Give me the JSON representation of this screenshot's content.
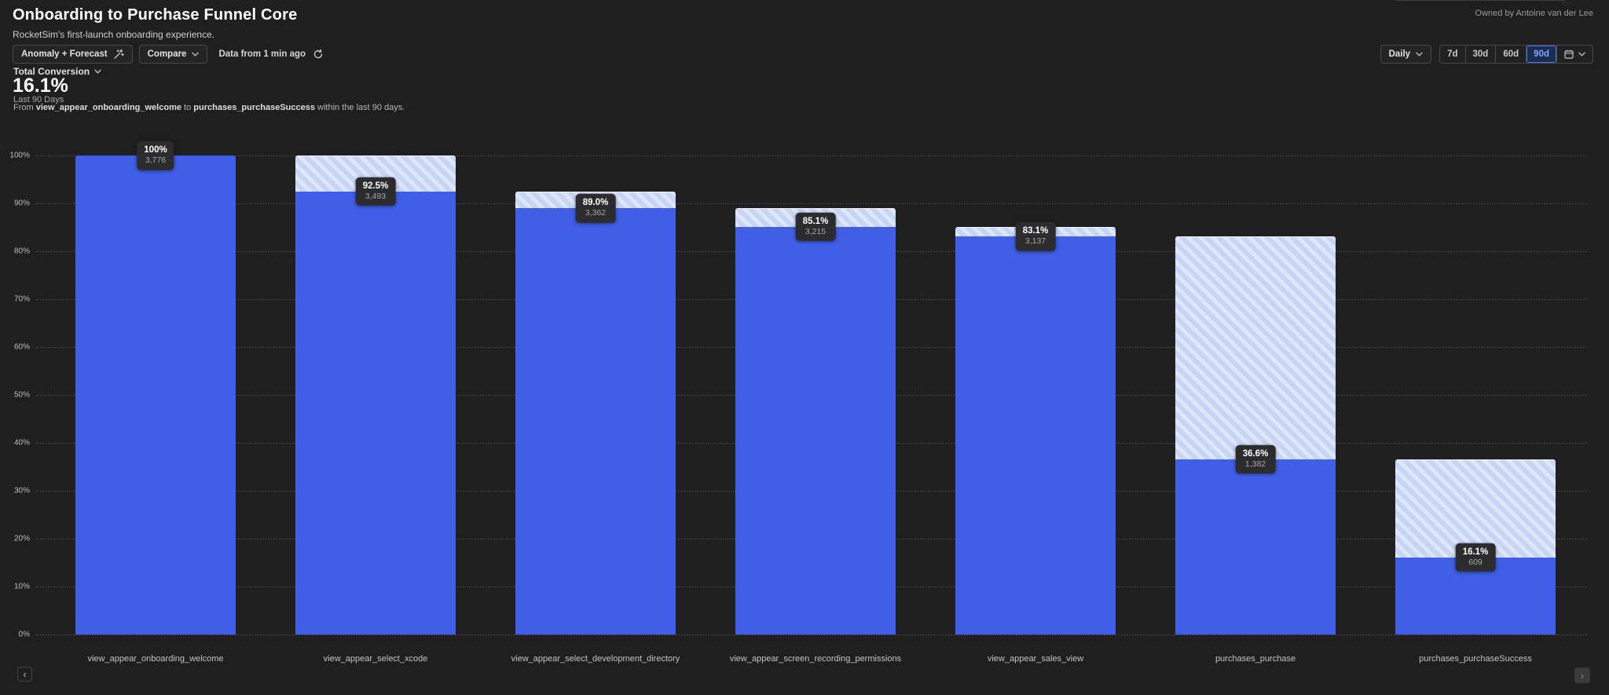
{
  "header": {
    "title": "Onboarding to Purchase Funnel Core",
    "subtitle": "RocketSim's first-launch onboarding experience.",
    "owner": "Owned by Antoine van der Lee"
  },
  "toolbar": {
    "anomaly_forecast_label": "Anomaly + Forecast",
    "compare_label": "Compare",
    "data_freshness": "Data from 1 min ago",
    "granularity_label": "Daily",
    "ranges": [
      "7d",
      "30d",
      "60d",
      "90d"
    ],
    "selected_range": "90d"
  },
  "summary": {
    "metric_label": "Total Conversion",
    "value": "16.1%",
    "period": "Last 90 Days",
    "description": {
      "prefix": "From",
      "from_event": "view_appear_onboarding_welcome",
      "mid": "to",
      "to_event": "purchases_purchaseSuccess",
      "suffix": "within the last 90 days."
    }
  },
  "chart_data": {
    "type": "bar",
    "variant": "funnel",
    "title": "Onboarding to Purchase Funnel Core",
    "categories": [
      "view_appear_onboarding_welcome",
      "view_appear_select_xcode",
      "view_appear_select_development_directory",
      "view_appear_screen_recording_permissions",
      "view_appear_sales_view",
      "purchases_purchase",
      "purchases_purchaseSuccess"
    ],
    "series": [
      {
        "name": "conversion_pct",
        "values": [
          100,
          92.5,
          89.0,
          85.1,
          83.1,
          36.6,
          16.1
        ]
      },
      {
        "name": "users",
        "values": [
          3776,
          3493,
          3362,
          3215,
          3137,
          1382,
          609
        ]
      }
    ],
    "value_labels": [
      "100%",
      "92.5%",
      "89.0%",
      "85.1%",
      "83.1%",
      "36.6%",
      "16.1%"
    ],
    "count_labels": [
      "3,776",
      "3,493",
      "3,362",
      "3,215",
      "3,137",
      "1,382",
      "609"
    ],
    "ylim": [
      0,
      100
    ],
    "ytick_values": [
      0,
      10,
      20,
      30,
      40,
      50,
      60,
      70,
      80,
      90,
      100
    ],
    "ytick_labels": [
      "0%",
      "10%",
      "20%",
      "30%",
      "40%",
      "50%",
      "60%",
      "70%",
      "80%",
      "90%",
      "100%"
    ],
    "grid": "horizontal-dotted",
    "legend": "none",
    "colors": {
      "bar": "#405ee6",
      "dropoff_base": "#c6d4f5",
      "dropoff_stripe": "#dee7fa",
      "label_bg": "#2c2c2e"
    }
  },
  "icons": {
    "anomaly": "wand-icon",
    "dropdown": "chevron-down-icon",
    "refresh": "refresh-icon",
    "date_range": "calendar-icon",
    "pager_prev_glyph": "‹",
    "pager_next_glyph": "›"
  }
}
